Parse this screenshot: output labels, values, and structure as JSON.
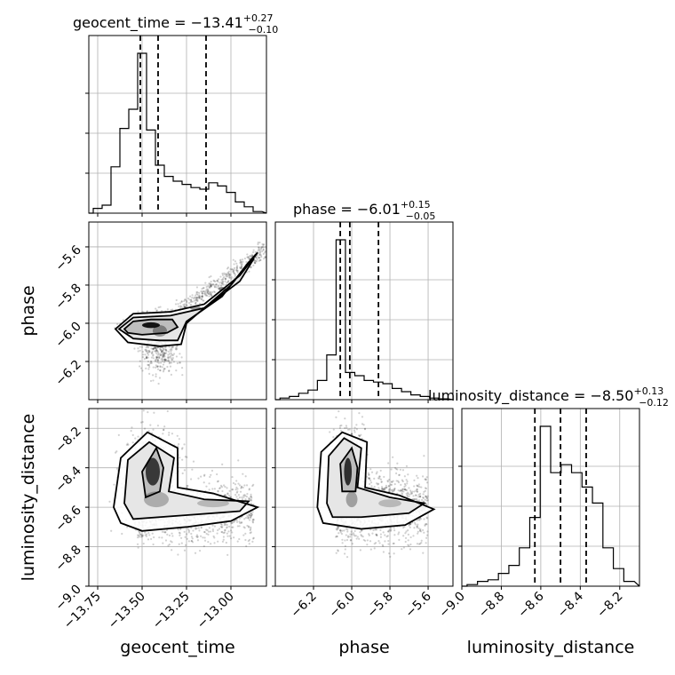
{
  "chart_data": {
    "type": "corner",
    "parameters": [
      {
        "name": "geocent_time",
        "title": {
          "prefix": "geocent_time = ",
          "value": "−13.41",
          "plus": "+0.27",
          "minus": "−0.10"
        },
        "range": [
          -13.8,
          -12.8
        ],
        "ticks": [
          -13.75,
          -13.5,
          -13.25,
          -13.0
        ],
        "tick_labels": [
          "−13.75",
          "−13.50",
          "−13.25",
          "−13.00"
        ],
        "quantiles": [
          -13.51,
          -13.41,
          -13.14
        ],
        "hist": [
          0.03,
          0.05,
          0.29,
          0.53,
          0.65,
          1.0,
          0.52,
          0.3,
          0.23,
          0.2,
          0.18,
          0.16,
          0.15,
          0.19,
          0.17,
          0.13,
          0.07,
          0.04,
          0.01
        ],
        "hist_grid_fraction": [
          0.25,
          0.5,
          0.75
        ]
      },
      {
        "name": "phase",
        "title": {
          "prefix": "phase = ",
          "value": "−6.01",
          "plus": "+0.15",
          "minus": "−0.05"
        },
        "range": [
          -6.4,
          -5.47
        ],
        "ticks": [
          -6.2,
          -6.0,
          -5.8,
          -5.6
        ],
        "tick_labels": [
          "−6.2",
          "−6.0",
          "−5.8",
          "−5.6"
        ],
        "quantiles": [
          -6.06,
          -6.01,
          -5.86
        ],
        "hist": [
          0.01,
          0.02,
          0.04,
          0.06,
          0.12,
          0.28,
          1.0,
          0.17,
          0.15,
          0.12,
          0.11,
          0.1,
          0.07,
          0.05,
          0.03,
          0.02,
          0.01,
          0.005
        ],
        "hist_grid_fraction": [
          0.25,
          0.5,
          0.75
        ]
      },
      {
        "name": "luminosity_distance",
        "title": {
          "prefix": "luminosity_distance = ",
          "value": "−8.50",
          "plus": "+0.13",
          "minus": "−0.12"
        },
        "range": [
          -9.0,
          -8.1
        ],
        "ticks": [
          -9.0,
          -8.8,
          -8.6,
          -8.4,
          -8.2
        ],
        "tick_labels": [
          "−9.0",
          "−8.8",
          "−8.6",
          "−8.4",
          "−8.2"
        ],
        "quantiles": [
          -8.63,
          -8.5,
          -8.37
        ],
        "hist": [
          0.01,
          0.03,
          0.04,
          0.08,
          0.13,
          0.24,
          0.43,
          1.0,
          0.71,
          0.76,
          0.71,
          0.62,
          0.52,
          0.24,
          0.11,
          0.03
        ],
        "hist_grid_fraction": [
          0.25,
          0.5,
          0.75
        ]
      }
    ],
    "axis_labels": [
      "geocent_time",
      "phase",
      "luminosity_distance"
    ],
    "pair_plots": [
      {
        "x": "geocent_time",
        "y": "phase",
        "description": "2D density with contours"
      },
      {
        "x": "geocent_time",
        "y": "luminosity_distance",
        "description": "2D density with contours"
      },
      {
        "x": "phase",
        "y": "luminosity_distance",
        "description": "2D density with contours"
      }
    ],
    "grid": true
  }
}
